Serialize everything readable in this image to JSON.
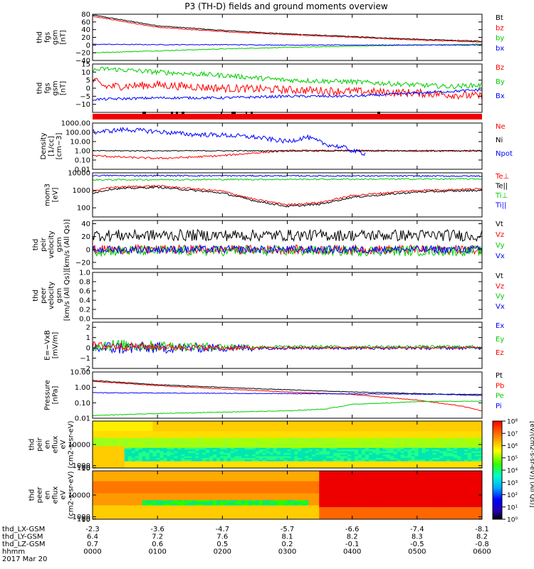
{
  "title": "P3 (TH-D) fields and ground moments overview",
  "footer": {
    "row_labels": [
      "thd_LX-GSM",
      "thd_LY-GSM",
      "thd_LZ-GSM",
      "hhmm",
      "2017 Mar 20"
    ],
    "columns": [
      [
        "-2.3",
        "6.4",
        "0.7",
        "0000"
      ],
      [
        "-3.6",
        "7.2",
        "0.6",
        "0100"
      ],
      [
        "-4.7",
        "7.6",
        "0.5",
        "0200"
      ],
      [
        "-5.7",
        "8.1",
        "0.2",
        "0300"
      ],
      [
        "-6.6",
        "8.2",
        "-0.1",
        "0400"
      ],
      [
        "-7.4",
        "8.3",
        "-0.5",
        "0500"
      ],
      [
        "-8.1",
        "8.2",
        "-0.8",
        "0600"
      ]
    ]
  },
  "colorbar": {
    "ticks": [
      "10⁸",
      "10⁷",
      "10⁶",
      "10⁵",
      "10⁴",
      "10³",
      "10²",
      "10¹",
      "10⁰"
    ],
    "label": "[eV/(cm2-s-sr-eV)] (All Qs)]"
  },
  "chart_data": [
    {
      "type": "line",
      "id": "fgs_a",
      "ylabel": [
        "thd",
        "fgs",
        "gsm",
        "[nT]"
      ],
      "yticks": [
        "80",
        "60",
        "40",
        "20",
        "0",
        "−20",
        "−40"
      ],
      "ylim": [
        -40,
        80
      ],
      "series": [
        {
          "name": "Bt",
          "color": "#000000",
          "x": [
            0,
            1,
            2,
            3,
            4,
            5,
            6
          ],
          "y": [
            78,
            50,
            38,
            29,
            22,
            15,
            10
          ],
          "noise": 1
        },
        {
          "name": "bz",
          "color": "#ff0000",
          "x": [
            0,
            1,
            2,
            3,
            4,
            5,
            6
          ],
          "y": [
            75,
            46,
            35,
            27,
            20,
            13,
            8
          ],
          "noise": 1
        },
        {
          "name": "by",
          "color": "#00cc00",
          "x": [
            0,
            1,
            2,
            3,
            4,
            5,
            6
          ],
          "y": [
            -20,
            -15,
            -10,
            -6,
            -3,
            0,
            2
          ],
          "noise": 1
        },
        {
          "name": "bx",
          "color": "#0000ff",
          "x": [
            0,
            1,
            2,
            3,
            4,
            5,
            6
          ],
          "y": [
            2,
            1,
            1,
            0,
            0,
            0,
            0
          ],
          "noise": 1
        }
      ]
    },
    {
      "type": "line",
      "id": "fgs_b",
      "ylabel": [
        "thd",
        "fgs",
        "gsm",
        "[nT]"
      ],
      "yticks": [
        "15",
        "10",
        "5",
        "0",
        "−5",
        "−10"
      ],
      "ylim": [
        -15,
        15
      ],
      "series": [
        {
          "name": "Bz",
          "color": "#ff0000",
          "x": [
            0,
            0.2,
            1,
            2,
            3,
            4,
            5,
            5.5,
            6
          ],
          "y": [
            5,
            1,
            2,
            0,
            -1,
            -2,
            -3,
            -4,
            -5
          ],
          "noise": 2.5
        },
        {
          "name": "By",
          "color": "#00cc00",
          "x": [
            0,
            0.2,
            1,
            2,
            3,
            4,
            5,
            5.5,
            6
          ],
          "y": [
            11,
            12,
            10,
            8,
            5,
            4,
            2,
            1,
            2
          ],
          "noise": 1.5
        },
        {
          "name": "Bx",
          "color": "#0000ff",
          "x": [
            0,
            1,
            2,
            3,
            4,
            5,
            6
          ],
          "y": [
            -7,
            -6,
            -6,
            -5,
            -5,
            -3,
            -1
          ],
          "noise": 0.8
        }
      ]
    },
    {
      "type": "line",
      "id": "density",
      "log": true,
      "ylabel": [
        "Density",
        "[1/cc]",
        "[cm−3]"
      ],
      "yticks": [
        "1000.00",
        "100.00",
        "10.00",
        "1.00",
        "0.10",
        "0.01"
      ],
      "ylim": [
        0.01,
        1000
      ],
      "series": [
        {
          "name": "Ne",
          "color": "#ff0000",
          "x": [
            0,
            0.5,
            1,
            1.5,
            2,
            2.5,
            3,
            3.5,
            4,
            4.5,
            5,
            5.5,
            6
          ],
          "y": [
            0.3,
            0.2,
            0.15,
            0.2,
            0.3,
            0.6,
            1,
            1,
            1,
            1,
            1,
            1,
            1
          ],
          "noise": 0.1
        },
        {
          "name": "Ni",
          "color": "#000000",
          "x": [
            0,
            6
          ],
          "y": [
            1,
            1
          ],
          "noise": 0.05
        },
        {
          "name": "Npot",
          "color": "#0000ff",
          "x": [
            0,
            0.3,
            0.5,
            1,
            1.5,
            2,
            2.5,
            3,
            3.3,
            3.6,
            3.9,
            4,
            4.2
          ],
          "y": [
            100,
            150,
            200,
            120,
            60,
            50,
            30,
            10,
            30,
            5,
            2,
            1,
            0.5
          ],
          "noise": 0.25
        }
      ]
    },
    {
      "type": "line",
      "id": "moms",
      "log": true,
      "ylabel": [
        "mom3",
        "[eV]"
      ],
      "yticks": [
        "10000",
        "1000",
        "100"
      ],
      "ylim": [
        30,
        10000
      ],
      "series": [
        {
          "name": "Te⊥",
          "color": "#ff0000",
          "x": [
            0,
            0.3,
            1,
            2,
            2.5,
            3,
            3.5,
            4,
            5,
            6
          ],
          "y": [
            900,
            1500,
            1800,
            900,
            300,
            150,
            200,
            500,
            1000,
            1200
          ],
          "noise": 0.05
        },
        {
          "name": "Te||",
          "color": "#000000",
          "x": [
            0,
            0.3,
            1,
            2,
            2.5,
            3,
            3.5,
            4,
            5,
            6
          ],
          "y": [
            700,
            1200,
            1500,
            700,
            250,
            120,
            160,
            400,
            800,
            1000
          ],
          "noise": 0.05
        },
        {
          "name": "Ti⊥",
          "color": "#00cc00",
          "x": [
            0,
            6
          ],
          "y": [
            4000,
            4500
          ],
          "noise": 0.04
        },
        {
          "name": "Ti||",
          "color": "#0000ff",
          "x": [
            0,
            6
          ],
          "y": [
            7000,
            6500
          ],
          "noise": 0.04
        }
      ]
    },
    {
      "type": "line",
      "id": "peir_vel",
      "ylabel": [
        "thd",
        "peir",
        "velocity",
        "gsm",
        "[km/s (All Qs)]"
      ],
      "yticks": [
        "40",
        "20",
        "0",
        "−20"
      ],
      "ylim": [
        -30,
        45
      ],
      "series": [
        {
          "name": "Vt",
          "color": "#000000",
          "x": [
            0,
            6
          ],
          "y": [
            22,
            22
          ],
          "noise": 9
        },
        {
          "name": "Vz",
          "color": "#ff0000",
          "x": [
            0,
            6
          ],
          "y": [
            0,
            0
          ],
          "noise": 7
        },
        {
          "name": "Vy",
          "color": "#00cc00",
          "x": [
            0,
            6
          ],
          "y": [
            -2,
            -2
          ],
          "noise": 8
        },
        {
          "name": "Vx",
          "color": "#0000ff",
          "x": [
            0,
            6
          ],
          "y": [
            0,
            0
          ],
          "noise": 6
        }
      ]
    },
    {
      "type": "line",
      "id": "peer_vel",
      "ylabel": [
        "thd",
        "peer",
        "velocity",
        "gsm",
        "[km/s (All Qs)]"
      ],
      "yticks": [
        "1.0",
        "0.8",
        "0.6",
        "0.4",
        "0.2",
        "0.0"
      ],
      "ylim": [
        0,
        1
      ],
      "series": [
        {
          "name": "Vt",
          "color": "#000000",
          "x": [],
          "y": []
        },
        {
          "name": "Vz",
          "color": "#ff0000",
          "x": [],
          "y": []
        },
        {
          "name": "Vy",
          "color": "#00cc00",
          "x": [],
          "y": []
        },
        {
          "name": "Vx",
          "color": "#0000ff",
          "x": [],
          "y": []
        }
      ]
    },
    {
      "type": "line",
      "id": "efield",
      "ylabel": [
        "E=−VxB",
        "[mV/m]"
      ],
      "yticks": [
        "2",
        "1",
        "0",
        "−1",
        "−2"
      ],
      "ylim": [
        -2,
        2.5
      ],
      "series": [
        {
          "name": "Ex",
          "color": "#0000ff",
          "x": [
            0,
            1,
            2,
            3,
            4,
            5,
            6
          ],
          "y": [
            0,
            0,
            0,
            0,
            0,
            0,
            0
          ],
          "noise": 0.5,
          "decay": true
        },
        {
          "name": "Ey",
          "color": "#00cc00",
          "x": [
            0,
            1,
            2,
            3,
            4,
            5,
            6
          ],
          "y": [
            0.3,
            0.2,
            0.1,
            0.1,
            0.1,
            0.1,
            0.1
          ],
          "noise": 0.45,
          "decay": true
        },
        {
          "name": "Ez",
          "color": "#ff0000",
          "x": [
            0,
            1,
            2,
            3,
            4,
            5,
            6
          ],
          "y": [
            0.2,
            0.1,
            0,
            0,
            0,
            0,
            0
          ],
          "noise": 0.3,
          "decay": true
        }
      ]
    },
    {
      "type": "line",
      "id": "pressure",
      "log": true,
      "ylabel": [
        "Pressure",
        "[nPa]"
      ],
      "yticks": [
        "10.00",
        "1.00",
        "0.10",
        "0.01"
      ],
      "ylim": [
        0.01,
        10
      ],
      "series": [
        {
          "name": "Pt",
          "color": "#000000",
          "x": [
            0,
            1,
            2,
            3,
            4,
            5,
            6
          ],
          "y": [
            2.8,
            1.5,
            1,
            0.7,
            0.5,
            0.4,
            0.3
          ],
          "noise": 0.02
        },
        {
          "name": "Pb",
          "color": "#ff0000",
          "x": [
            0,
            1,
            2,
            3,
            4,
            5,
            5.7,
            6
          ],
          "y": [
            2.5,
            1.3,
            0.8,
            0.5,
            0.35,
            0.15,
            0.06,
            0.03
          ],
          "noise": 0.02
        },
        {
          "name": "Pe",
          "color": "#00cc00",
          "x": [
            0,
            1,
            2,
            3,
            3.6,
            4,
            4.6,
            5,
            6
          ],
          "y": [
            0.015,
            0.02,
            0.025,
            0.03,
            0.04,
            0.08,
            0.1,
            0.12,
            0.13
          ],
          "noise": 0.02
        },
        {
          "name": "Pi",
          "color": "#0000ff",
          "x": [
            0,
            6
          ],
          "y": [
            0.45,
            0.35
          ],
          "noise": 0.02
        }
      ]
    },
    {
      "type": "heatmap",
      "id": "peir_spec",
      "ylabel": [
        "thd",
        "peir",
        "en",
        "eflux",
        "eV",
        "(cm2-s-sr-eV)"
      ],
      "yticks": [
        "10000",
        "1000",
        "100",
        "10"
      ],
      "ylim": [
        5,
        20000
      ]
    },
    {
      "type": "heatmap",
      "id": "peer_spec",
      "ylabel": [
        "thd",
        "peer",
        "en",
        "eflux",
        "eV",
        "(cm2-s-sr-eV)"
      ],
      "yticks": [
        "10000",
        "1000",
        "100",
        "10"
      ],
      "ylim": [
        5,
        20000
      ]
    }
  ]
}
